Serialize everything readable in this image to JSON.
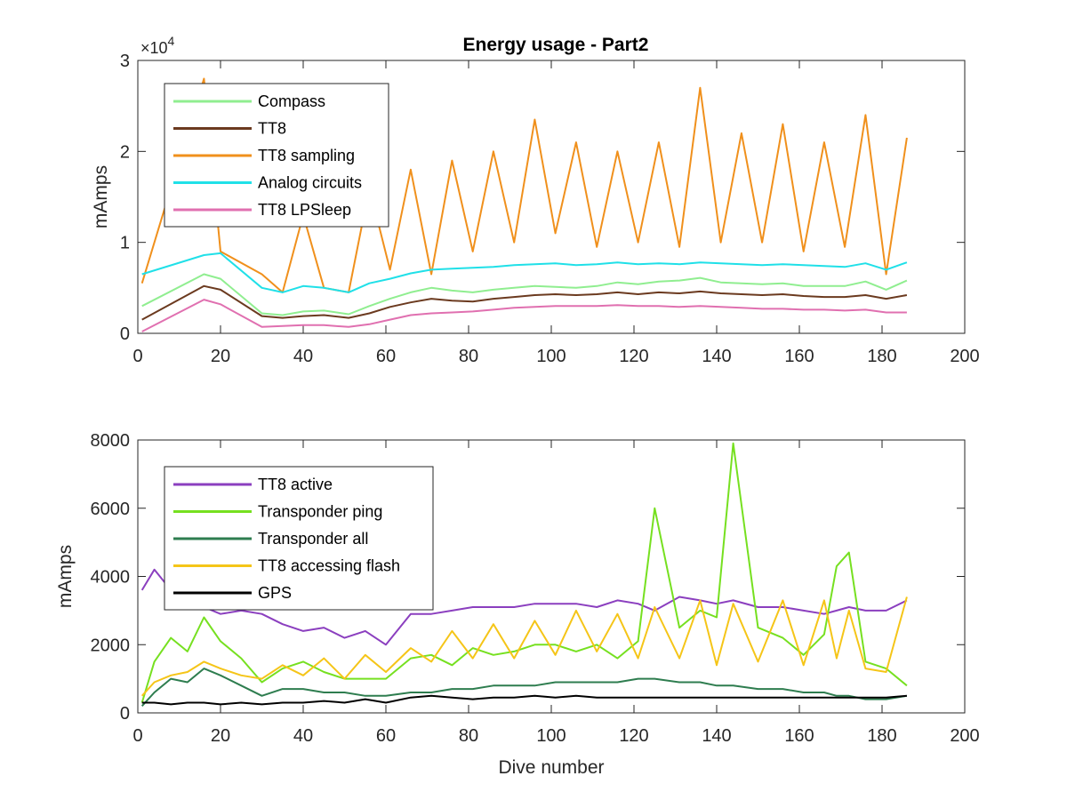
{
  "figure_title": "Energy usage - Part2",
  "chart_data": [
    {
      "type": "line",
      "title": "Energy usage - Part2",
      "xlabel": "",
      "ylabel": "mAmps",
      "xlim": [
        0,
        200
      ],
      "ylim": [
        0,
        30000
      ],
      "xticks": [
        "0",
        "20",
        "40",
        "60",
        "80",
        "100",
        "120",
        "140",
        "160",
        "180",
        "200"
      ],
      "yticks": [
        "0",
        "1",
        "2",
        "3"
      ],
      "y_exponent_label": "×10",
      "y_exponent": "4",
      "grid": false,
      "legend_position": "top-left",
      "x": [
        1,
        16,
        20,
        30,
        35,
        40,
        45,
        51,
        56,
        61,
        66,
        71,
        76,
        81,
        86,
        91,
        96,
        101,
        106,
        111,
        116,
        121,
        126,
        131,
        136,
        141,
        146,
        151,
        156,
        161,
        166,
        171,
        176,
        181,
        186
      ],
      "series": [
        {
          "name": "Compass",
          "color": "#90ee90",
          "values": [
            3000,
            6500,
            6000,
            2200,
            2000,
            2400,
            2500,
            2100,
            3000,
            3800,
            4500,
            5000,
            4700,
            4500,
            4800,
            5000,
            5200,
            5100,
            5000,
            5200,
            5600,
            5400,
            5700,
            5800,
            6100,
            5600,
            5500,
            5400,
            5500,
            5200,
            5200,
            5200,
            5700,
            4800,
            5800
          ]
        },
        {
          "name": "TT8",
          "color": "#6b3a1f",
          "values": [
            1500,
            5200,
            4800,
            1900,
            1700,
            1900,
            2000,
            1700,
            2200,
            2900,
            3400,
            3800,
            3600,
            3500,
            3800,
            4000,
            4200,
            4300,
            4200,
            4300,
            4500,
            4300,
            4500,
            4400,
            4600,
            4400,
            4300,
            4200,
            4300,
            4100,
            4000,
            4000,
            4200,
            3800,
            4200
          ]
        },
        {
          "name": "TT8 sampling",
          "color": "#f0901c",
          "values": [
            5500,
            28000,
            9000,
            6500,
            4500,
            13000,
            5000,
            4500,
            16000,
            7000,
            18000,
            6500,
            19000,
            9000,
            20000,
            10000,
            23500,
            11000,
            21000,
            9500,
            20000,
            10000,
            21000,
            9500,
            27000,
            10000,
            22000,
            10000,
            23000,
            9000,
            21000,
            9500,
            24000,
            6500,
            21500
          ]
        },
        {
          "name": "Analog circuits",
          "color": "#20e0e8",
          "values": [
            6500,
            8600,
            8800,
            5000,
            4500,
            5200,
            5000,
            4500,
            5500,
            6000,
            6600,
            7000,
            7100,
            7200,
            7300,
            7500,
            7600,
            7700,
            7500,
            7600,
            7800,
            7600,
            7700,
            7600,
            7800,
            7700,
            7600,
            7500,
            7600,
            7500,
            7400,
            7300,
            7700,
            7000,
            7800
          ]
        },
        {
          "name": "TT8 LPSleep",
          "color": "#e070b0",
          "values": [
            200,
            3700,
            3200,
            700,
            800,
            900,
            900,
            700,
            1000,
            1500,
            2000,
            2200,
            2300,
            2400,
            2600,
            2800,
            2900,
            3000,
            3000,
            3000,
            3100,
            3000,
            3000,
            2900,
            3000,
            2900,
            2800,
            2700,
            2700,
            2600,
            2600,
            2500,
            2600,
            2300,
            2300
          ]
        }
      ]
    },
    {
      "type": "line",
      "title": "",
      "xlabel": "Dive number",
      "ylabel": "mAmps",
      "xlim": [
        0,
        200
      ],
      "ylim": [
        0,
        8000
      ],
      "xticks": [
        "0",
        "20",
        "40",
        "60",
        "80",
        "100",
        "120",
        "140",
        "160",
        "180",
        "200"
      ],
      "yticks": [
        "0",
        "2000",
        "4000",
        "6000",
        "8000"
      ],
      "grid": false,
      "legend_position": "top-left",
      "x": [
        1,
        4,
        8,
        12,
        16,
        20,
        25,
        30,
        35,
        40,
        45,
        50,
        55,
        60,
        66,
        71,
        76,
        81,
        86,
        91,
        96,
        101,
        106,
        111,
        116,
        121,
        125,
        131,
        136,
        140,
        144,
        150,
        156,
        161,
        166,
        169,
        172,
        176,
        181,
        186
      ],
      "series": [
        {
          "name": "TT8 active",
          "color": "#8b3fbf",
          "values": [
            3600,
            4200,
            3600,
            3200,
            3100,
            2900,
            3000,
            2900,
            2600,
            2400,
            2500,
            2200,
            2400,
            2000,
            2900,
            2900,
            3000,
            3100,
            3100,
            3100,
            3200,
            3200,
            3200,
            3100,
            3300,
            3200,
            3000,
            3400,
            3300,
            3200,
            3300,
            3100,
            3100,
            3000,
            2900,
            3000,
            3100,
            3000,
            3000,
            3300
          ]
        },
        {
          "name": "Transponder ping",
          "color": "#76e020",
          "values": [
            300,
            1500,
            2200,
            1800,
            2800,
            2100,
            1600,
            900,
            1300,
            1500,
            1200,
            1000,
            1000,
            1000,
            1600,
            1700,
            1400,
            1900,
            1700,
            1800,
            2000,
            2000,
            1800,
            2000,
            1600,
            2100,
            6000,
            2500,
            3000,
            2800,
            7900,
            2500,
            2200,
            1700,
            2300,
            4300,
            4700,
            1500,
            1300,
            800
          ]
        },
        {
          "name": "Transponder all",
          "color": "#2e7d4f",
          "values": [
            200,
            600,
            1000,
            900,
            1300,
            1100,
            800,
            500,
            700,
            700,
            600,
            600,
            500,
            500,
            600,
            600,
            700,
            700,
            800,
            800,
            800,
            900,
            900,
            900,
            900,
            1000,
            1000,
            900,
            900,
            800,
            800,
            700,
            700,
            600,
            600,
            500,
            500,
            400,
            400,
            500
          ]
        },
        {
          "name": "TT8 accessing flash",
          "color": "#f5c518",
          "values": [
            500,
            900,
            1100,
            1200,
            1500,
            1300,
            1100,
            1000,
            1400,
            1100,
            1600,
            1000,
            1700,
            1200,
            1900,
            1500,
            2400,
            1600,
            2600,
            1600,
            2700,
            1700,
            3000,
            1800,
            2900,
            1600,
            3100,
            1600,
            3300,
            1400,
            3200,
            1500,
            3300,
            1400,
            3300,
            1600,
            3000,
            1300,
            1200,
            3400
          ]
        },
        {
          "name": "GPS",
          "color": "#000000",
          "values": [
            300,
            300,
            250,
            300,
            300,
            250,
            300,
            250,
            300,
            300,
            350,
            300,
            400,
            300,
            450,
            500,
            450,
            400,
            450,
            450,
            500,
            450,
            500,
            450,
            450,
            450,
            450,
            450,
            450,
            450,
            450,
            450,
            450,
            450,
            450,
            450,
            450,
            450,
            450,
            500
          ]
        }
      ]
    }
  ]
}
